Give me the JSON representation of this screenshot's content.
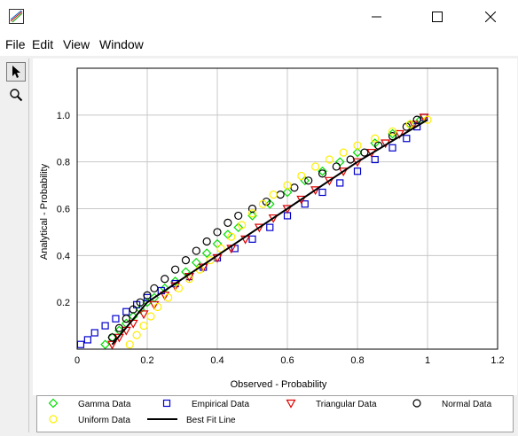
{
  "window": {
    "title": "",
    "icon": "chart-app-icon",
    "controls": {
      "minimize": "minimize-icon",
      "maximize": "maximize-icon",
      "close": "close-icon"
    }
  },
  "menu": {
    "items": [
      {
        "label": "File"
      },
      {
        "label": "Edit"
      },
      {
        "label": "View"
      },
      {
        "label": "Window"
      }
    ]
  },
  "toolbar": {
    "tools": [
      {
        "icon": "pointer-icon",
        "active": true
      },
      {
        "icon": "magnify-icon",
        "active": false
      }
    ]
  },
  "chart_data": {
    "type": "scatter",
    "title": "",
    "xlabel": "Observed - Probability",
    "ylabel": "Analytical - Probability",
    "xlim": [
      0,
      1.2
    ],
    "ylim": [
      0,
      1.2
    ],
    "xticks": [
      "0",
      "0.2",
      "0.4",
      "0.6",
      "0.8",
      "1",
      "1.2"
    ],
    "yticks": [
      "0.2",
      "0.4",
      "0.6",
      "0.8",
      "1.0"
    ],
    "grid": true,
    "legend_position": "bottom",
    "series": [
      {
        "name": "Gamma Data",
        "marker": "diamond",
        "color": "#00dd00",
        "x": [
          0.08,
          0.1,
          0.12,
          0.14,
          0.16,
          0.18,
          0.2,
          0.22,
          0.25,
          0.28,
          0.31,
          0.34,
          0.37,
          0.4,
          0.43,
          0.46,
          0.5,
          0.55,
          0.6,
          0.65,
          0.7,
          0.75,
          0.8,
          0.85,
          0.9,
          0.95,
          0.98
        ],
        "y": [
          0.02,
          0.05,
          0.08,
          0.11,
          0.14,
          0.17,
          0.2,
          0.22,
          0.26,
          0.29,
          0.33,
          0.37,
          0.41,
          0.45,
          0.49,
          0.52,
          0.57,
          0.62,
          0.67,
          0.72,
          0.76,
          0.8,
          0.84,
          0.88,
          0.92,
          0.96,
          0.98
        ]
      },
      {
        "name": "Empirical Data",
        "marker": "square",
        "color": "#0000cc",
        "x": [
          0.01,
          0.03,
          0.05,
          0.08,
          0.11,
          0.14,
          0.17,
          0.2,
          0.24,
          0.28,
          0.32,
          0.36,
          0.4,
          0.45,
          0.5,
          0.55,
          0.6,
          0.65,
          0.7,
          0.75,
          0.8,
          0.85,
          0.9,
          0.94,
          0.97,
          0.99
        ],
        "y": [
          0.02,
          0.04,
          0.07,
          0.1,
          0.13,
          0.16,
          0.19,
          0.22,
          0.25,
          0.28,
          0.31,
          0.35,
          0.39,
          0.43,
          0.47,
          0.52,
          0.57,
          0.62,
          0.67,
          0.71,
          0.76,
          0.81,
          0.86,
          0.9,
          0.95,
          0.99
        ]
      },
      {
        "name": "Triangular Data",
        "marker": "triangle-down",
        "color": "#dd0000",
        "x": [
          0.1,
          0.12,
          0.14,
          0.16,
          0.19,
          0.22,
          0.25,
          0.28,
          0.32,
          0.36,
          0.4,
          0.44,
          0.48,
          0.52,
          0.56,
          0.6,
          0.64,
          0.68,
          0.72,
          0.76,
          0.8,
          0.84,
          0.88,
          0.92,
          0.96,
          0.99
        ],
        "y": [
          0.02,
          0.05,
          0.08,
          0.11,
          0.15,
          0.19,
          0.23,
          0.27,
          0.31,
          0.35,
          0.39,
          0.43,
          0.47,
          0.52,
          0.56,
          0.6,
          0.64,
          0.68,
          0.72,
          0.76,
          0.8,
          0.84,
          0.88,
          0.92,
          0.96,
          0.99
        ]
      },
      {
        "name": "Normal Data",
        "marker": "circle",
        "color": "#000000",
        "x": [
          0.1,
          0.12,
          0.14,
          0.16,
          0.18,
          0.2,
          0.22,
          0.25,
          0.28,
          0.31,
          0.34,
          0.37,
          0.4,
          0.43,
          0.46,
          0.5,
          0.54,
          0.58,
          0.62,
          0.66,
          0.7,
          0.74,
          0.78,
          0.82,
          0.86,
          0.9,
          0.94,
          0.97
        ],
        "y": [
          0.05,
          0.09,
          0.13,
          0.17,
          0.2,
          0.23,
          0.26,
          0.3,
          0.34,
          0.38,
          0.42,
          0.46,
          0.5,
          0.54,
          0.57,
          0.6,
          0.63,
          0.66,
          0.69,
          0.72,
          0.75,
          0.78,
          0.81,
          0.84,
          0.87,
          0.91,
          0.95,
          0.98
        ]
      },
      {
        "name": "Uniform Data",
        "marker": "circle-open",
        "color": "#ffee00",
        "x": [
          0.15,
          0.17,
          0.19,
          0.21,
          0.23,
          0.26,
          0.29,
          0.32,
          0.35,
          0.38,
          0.41,
          0.44,
          0.47,
          0.5,
          0.53,
          0.56,
          0.6,
          0.64,
          0.68,
          0.72,
          0.76,
          0.8,
          0.85,
          0.9,
          0.95,
          1.0
        ],
        "y": [
          0.02,
          0.06,
          0.1,
          0.14,
          0.18,
          0.22,
          0.26,
          0.3,
          0.34,
          0.38,
          0.43,
          0.48,
          0.53,
          0.58,
          0.62,
          0.66,
          0.7,
          0.74,
          0.78,
          0.81,
          0.84,
          0.87,
          0.9,
          0.93,
          0.96,
          0.98
        ]
      },
      {
        "name": "Best Fit Line",
        "marker": "line",
        "color": "#000000",
        "x": [
          0.1,
          0.2,
          0.4,
          0.6,
          0.8,
          1.0
        ],
        "y": [
          0.02,
          0.2,
          0.4,
          0.6,
          0.8,
          0.98
        ]
      }
    ]
  }
}
